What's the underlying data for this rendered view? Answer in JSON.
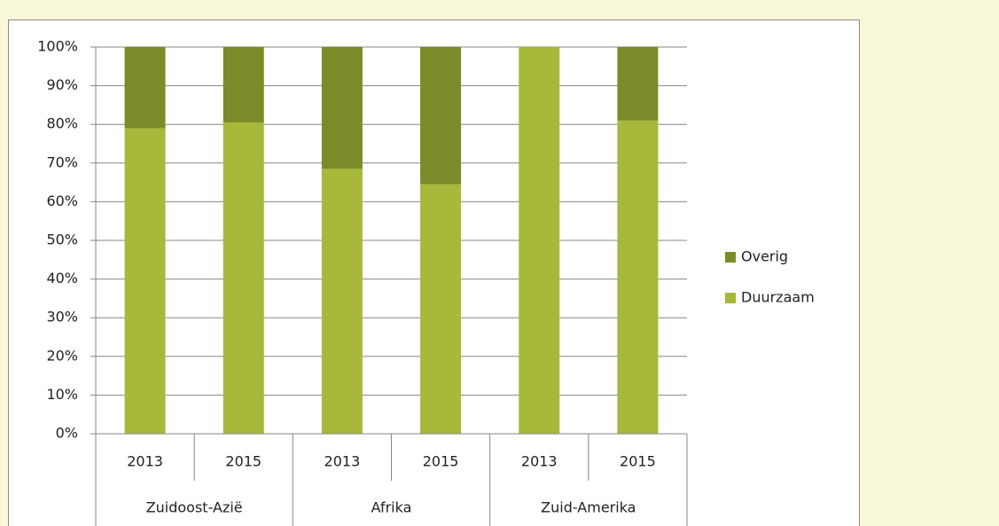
{
  "chart_data": {
    "type": "stacked_bar",
    "categories": [
      "2013",
      "2015",
      "2013",
      "2015",
      "2013",
      "2015"
    ],
    "groups": [
      "Zuidoost-Azië",
      "Afrika",
      "Zuid-Amerika"
    ],
    "series": [
      {
        "name": "Duurzaam",
        "color": "#a8b83a",
        "values": [
          79,
          80.5,
          68.5,
          64.5,
          100,
          81
        ]
      },
      {
        "name": "Overig",
        "color": "#7b8b2a",
        "values": [
          21,
          19.5,
          31.5,
          35.5,
          0,
          19
        ]
      }
    ],
    "ylim": [
      0,
      100
    ],
    "yticks": [
      {
        "value": 0,
        "label": "0%"
      },
      {
        "value": 10,
        "label": "10%"
      },
      {
        "value": 20,
        "label": "20%"
      },
      {
        "value": 30,
        "label": "30%"
      },
      {
        "value": 40,
        "label": "40%"
      },
      {
        "value": 50,
        "label": "50%"
      },
      {
        "value": 60,
        "label": "60%"
      },
      {
        "value": 70,
        "label": "70%"
      },
      {
        "value": 80,
        "label": "80%"
      },
      {
        "value": 90,
        "label": "90%"
      },
      {
        "value": 100,
        "label": "100%"
      }
    ],
    "grid": true,
    "legend": "right"
  }
}
